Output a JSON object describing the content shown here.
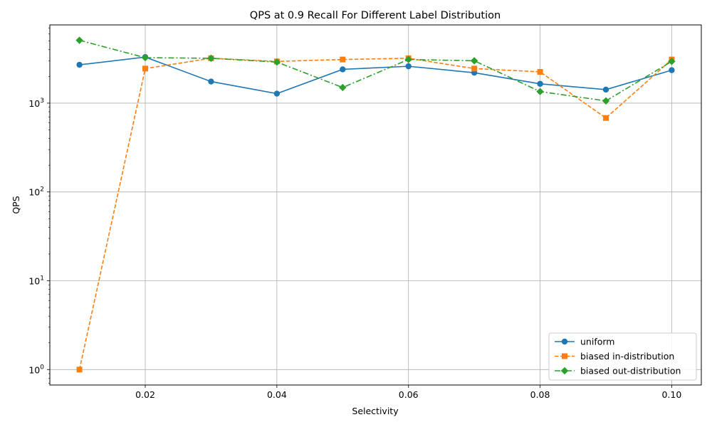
{
  "chart_data": {
    "type": "line",
    "title": "QPS at 0.9 Recall For Different Label Distribution",
    "xlabel": "Selectivity",
    "ylabel": "QPS",
    "yscale": "log",
    "xlim": [
      0.0055,
      0.1045
    ],
    "ylim": [
      0.67,
      7600
    ],
    "grid": true,
    "legend_position": "bottom-right",
    "x": [
      0.01,
      0.02,
      0.03,
      0.04,
      0.05,
      0.06,
      0.07,
      0.08,
      0.09,
      0.1
    ],
    "x_ticks": [
      {
        "value": 0.02,
        "label": "0.02"
      },
      {
        "value": 0.04,
        "label": "0.04"
      },
      {
        "value": 0.06,
        "label": "0.06"
      },
      {
        "value": 0.08,
        "label": "0.08"
      },
      {
        "value": 0.1,
        "label": "0.10"
      }
    ],
    "y_ticks": [
      {
        "value": 1,
        "base": "10",
        "exp": "0"
      },
      {
        "value": 10,
        "base": "10",
        "exp": "1"
      },
      {
        "value": 100,
        "base": "10",
        "exp": "2"
      },
      {
        "value": 1000,
        "base": "10",
        "exp": "3"
      }
    ],
    "series": [
      {
        "name": "uniform",
        "color": "#1f77b4",
        "marker": "circle",
        "dash": "solid",
        "values": [
          2700,
          3300,
          1750,
          1280,
          2400,
          2600,
          2200,
          1650,
          1420,
          2350
        ]
      },
      {
        "name": "biased in-distribution",
        "color": "#ff7f0e",
        "marker": "square",
        "dash": "dashed",
        "values": [
          1,
          2450,
          3200,
          2950,
          3100,
          3200,
          2450,
          2250,
          680,
          3100
        ]
      },
      {
        "name": "biased out-distribution",
        "color": "#2ca02c",
        "marker": "diamond",
        "dash": "dashdot",
        "values": [
          5100,
          3250,
          3200,
          2900,
          1500,
          3100,
          3000,
          1350,
          1060,
          2950
        ]
      }
    ]
  }
}
